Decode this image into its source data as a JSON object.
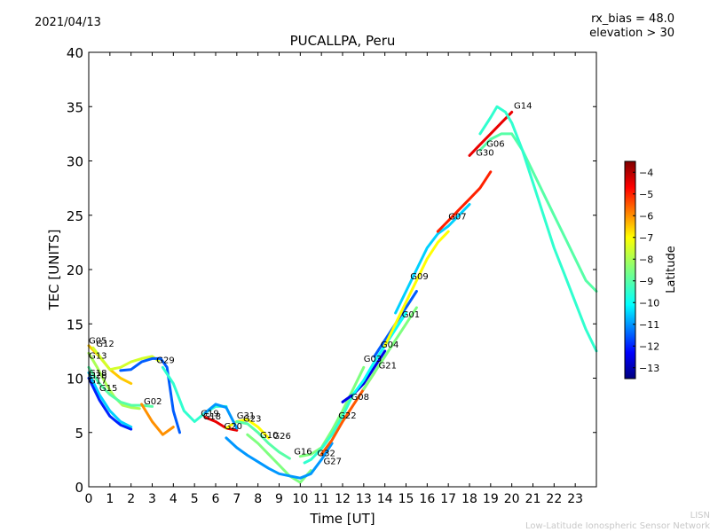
{
  "header": {
    "date": "2021/04/13",
    "rx_bias": "rx_bias = 48.0",
    "elevation": "elevation > 30"
  },
  "footer": {
    "credit_short": "LISN",
    "credit_long": "Low-Latitude Ionospheric Sensor Network"
  },
  "chart_data": {
    "type": "scatter",
    "title": "PUCALLPA, Peru",
    "xlabel": "Time [UT]",
    "ylabel": "TEC [UNITS]",
    "xlim": [
      0,
      24
    ],
    "ylim": [
      0,
      40
    ],
    "xticks": [
      0,
      1,
      2,
      3,
      4,
      5,
      6,
      7,
      8,
      9,
      10,
      11,
      12,
      13,
      14,
      15,
      16,
      17,
      18,
      19,
      20,
      21,
      22,
      23
    ],
    "yticks": [
      0,
      5,
      10,
      15,
      20,
      25,
      30,
      35,
      40
    ],
    "grid": false,
    "colorbar": {
      "label": "Latitude",
      "range": [
        -13.5,
        -3.5
      ],
      "ticks": [
        -4,
        -5,
        -6,
        -7,
        -8,
        -9,
        -10,
        -11,
        -12,
        -13
      ],
      "colormap": [
        "#00007f",
        "#0000ff",
        "#007fff",
        "#00ffff",
        "#7fff7f",
        "#ffff00",
        "#ff7f00",
        "#ff0000",
        "#7f0000"
      ]
    },
    "series": [
      {
        "name": "G05",
        "lat": -6.5,
        "x": [
          0.0,
          0.5,
          1.0,
          1.5,
          2.0
        ],
        "y": [
          13.0,
          12.0,
          10.8,
          10.0,
          9.5
        ]
      },
      {
        "name": "G12",
        "lat": -7.5,
        "x": [
          0.2,
          0.6,
          1.0,
          1.5,
          2.0,
          2.5,
          3.0,
          3.3
        ],
        "y": [
          12.8,
          11.8,
          10.8,
          11.0,
          11.5,
          11.8,
          12.0,
          11.6
        ]
      },
      {
        "name": "G13",
        "lat": -8.0,
        "x": [
          0.0,
          0.4,
          0.8,
          1.2,
          1.6,
          2.0,
          2.4
        ],
        "y": [
          12.3,
          11.0,
          9.5,
          8.3,
          7.5,
          7.3,
          7.2
        ]
      },
      {
        "name": "G15",
        "lat": -9.0,
        "x": [
          0.0,
          0.5,
          1.0,
          1.5,
          2.0,
          2.5,
          3.0
        ],
        "y": [
          11.0,
          9.5,
          8.5,
          7.8,
          7.5,
          7.5,
          7.4
        ]
      },
      {
        "name": "G18",
        "lat": -10.5,
        "x": [
          0.0,
          0.5,
          1.0,
          1.5,
          2.0
        ],
        "y": [
          10.5,
          8.5,
          7.0,
          6.0,
          5.5
        ]
      },
      {
        "name": "G28",
        "lat": -12.0,
        "x": [
          0.0,
          0.5,
          1.0,
          1.5,
          2.0
        ],
        "y": [
          10.0,
          8.0,
          6.5,
          5.7,
          5.3
        ]
      },
      {
        "name": "G29",
        "lat": -11.5,
        "x": [
          1.5,
          2.0,
          2.5,
          3.0,
          3.4,
          3.7,
          4.0,
          4.3
        ],
        "y": [
          10.7,
          10.8,
          11.5,
          11.8,
          11.8,
          11.0,
          7.0,
          5.0
        ]
      },
      {
        "name": "G02",
        "lat": -6.0,
        "x": [
          2.5,
          3.0,
          3.5,
          4.0
        ],
        "y": [
          7.6,
          6.0,
          4.8,
          5.5
        ]
      },
      {
        "name": "G26",
        "lat": -9.5,
        "x": [
          3.5,
          4.0,
          4.5,
          5.0,
          5.5,
          6.0,
          6.5
        ],
        "y": [
          11.0,
          9.5,
          7.0,
          6.0,
          6.8,
          7.4,
          7.4
        ]
      },
      {
        "name": "G19",
        "lat": -4.5,
        "x": [
          5.5,
          6.0,
          6.5,
          7.0
        ],
        "y": [
          6.4,
          6.0,
          5.4,
          5.2
        ]
      },
      {
        "name": "G20",
        "lat": -7.0,
        "x": [
          6.5,
          7.0,
          7.5,
          8.0,
          8.5
        ],
        "y": [
          5.4,
          6.0,
          6.2,
          5.5,
          4.5
        ]
      },
      {
        "name": "G31",
        "lat": -11.0,
        "x": [
          5.5,
          6.0,
          6.5,
          7.0
        ],
        "y": [
          6.8,
          7.6,
          7.3,
          5.4
        ]
      },
      {
        "name": "G23",
        "lat": -9.0,
        "x": [
          7.0,
          7.5,
          8.0,
          8.5,
          9.0,
          9.5
        ],
        "y": [
          6.0,
          5.8,
          5.0,
          4.0,
          3.2,
          2.6
        ]
      },
      {
        "name": "G10",
        "lat": -8.5,
        "x": [
          7.5,
          8.0,
          8.5,
          9.0,
          9.5,
          10.0,
          10.5
        ],
        "y": [
          4.8,
          4.0,
          3.0,
          2.0,
          1.0,
          0.4,
          1.5
        ]
      },
      {
        "name": "G16",
        "lat": -11.0,
        "x": [
          6.5,
          7.0,
          7.5,
          8.0,
          8.5,
          9.0,
          9.5,
          10.0,
          10.5,
          11.0,
          11.5
        ],
        "y": [
          4.5,
          3.6,
          2.9,
          2.3,
          1.7,
          1.2,
          1.0,
          0.8,
          1.2,
          2.5,
          4.0
        ]
      },
      {
        "name": "G32",
        "lat": -8.5,
        "x": [
          10.0,
          10.5,
          11.0,
          11.5,
          12.0,
          12.5,
          13.0
        ],
        "y": [
          2.8,
          3.0,
          3.6,
          5.2,
          7.0,
          9.0,
          11.0
        ]
      },
      {
        "name": "G27",
        "lat": -9.5,
        "x": [
          10.2,
          10.5,
          11.0,
          11.5,
          12.0,
          12.5
        ],
        "y": [
          2.2,
          2.5,
          3.5,
          4.8,
          6.5,
          8.5
        ]
      },
      {
        "name": "G22",
        "lat": -5.5,
        "x": [
          11.0,
          11.5,
          12.0,
          12.5,
          13.0,
          13.5
        ],
        "y": [
          3.0,
          4.3,
          6.0,
          7.5,
          9.0,
          10.5
        ]
      },
      {
        "name": "G08",
        "lat": -12.5,
        "x": [
          12.0,
          12.5,
          13.0,
          13.5,
          14.0
        ],
        "y": [
          7.8,
          8.5,
          9.5,
          11.0,
          12.5
        ]
      },
      {
        "name": "G03",
        "lat": -10.0,
        "x": [
          12.5,
          13.0,
          13.5,
          14.0,
          14.5,
          15.0
        ],
        "y": [
          8.5,
          9.8,
          11.5,
          13.0,
          14.5,
          16.0
        ]
      },
      {
        "name": "G21",
        "lat": -8.5,
        "x": [
          13.0,
          13.5,
          14.0,
          14.5,
          15.0,
          15.5
        ],
        "y": [
          9.0,
          10.5,
          12.0,
          13.5,
          15.0,
          16.5
        ]
      },
      {
        "name": "G04",
        "lat": -11.5,
        "x": [
          13.5,
          14.0,
          14.5,
          15.0,
          15.5
        ],
        "y": [
          12.0,
          13.5,
          15.0,
          16.5,
          18.0
        ]
      },
      {
        "name": "G01",
        "lat": -7.0,
        "x": [
          14.0,
          14.5,
          15.0,
          15.5,
          16.0,
          16.5,
          17.0
        ],
        "y": [
          13.0,
          15.0,
          17.0,
          19.0,
          21.0,
          22.5,
          23.5
        ]
      },
      {
        "name": "G09",
        "lat": -10.5,
        "x": [
          14.5,
          15.0,
          15.5,
          16.0,
          16.5,
          17.0,
          17.5,
          18.0
        ],
        "y": [
          16.0,
          18.0,
          20.0,
          22.0,
          23.3,
          24.0,
          25.0,
          26.0
        ]
      },
      {
        "name": "G07",
        "lat": -5.0,
        "x": [
          16.5,
          17.0,
          17.5,
          18.0,
          18.5,
          19.0
        ],
        "y": [
          23.5,
          24.5,
          25.5,
          26.5,
          27.5,
          29.0
        ]
      },
      {
        "name": "G30",
        "lat": -4.5,
        "x": [
          18.0,
          18.5,
          19.0,
          19.5,
          20.0
        ],
        "y": [
          30.5,
          31.5,
          32.5,
          33.5,
          34.5
        ]
      },
      {
        "name": "G06",
        "lat": -9.0,
        "x": [
          18.5,
          19.0,
          19.5,
          20.0,
          20.5,
          21.0,
          21.5,
          22.0,
          22.5,
          23.0,
          23.5,
          24.0
        ],
        "y": [
          31.0,
          32.0,
          32.5,
          32.5,
          31.0,
          29.0,
          27.0,
          25.0,
          23.0,
          21.0,
          19.0,
          18.0
        ]
      },
      {
        "name": "G14",
        "lat": -9.5,
        "x": [
          18.5,
          19.0,
          19.3,
          19.7,
          20.0,
          20.5,
          21.0,
          21.5,
          22.0,
          22.5,
          23.0,
          23.5,
          24.0
        ],
        "y": [
          32.5,
          34.0,
          35.0,
          34.5,
          33.5,
          31.0,
          28.0,
          25.0,
          22.0,
          19.5,
          17.0,
          14.5,
          12.5
        ]
      }
    ],
    "labels": [
      {
        "text": "G05",
        "x": 0.0,
        "y": 13.2
      },
      {
        "text": "G12",
        "x": 0.35,
        "y": 12.9
      },
      {
        "text": "G13",
        "x": 0.0,
        "y": 11.8
      },
      {
        "text": "G18",
        "x": 0.0,
        "y": 10.2
      },
      {
        "text": "G28",
        "x": 0.0,
        "y": 10.0
      },
      {
        "text": "G17",
        "x": 0.0,
        "y": 9.5
      },
      {
        "text": "G15",
        "x": 0.5,
        "y": 8.8
      },
      {
        "text": "G29",
        "x": 3.2,
        "y": 11.4
      },
      {
        "text": "G02",
        "x": 2.6,
        "y": 7.6
      },
      {
        "text": "G19",
        "x": 5.3,
        "y": 6.5
      },
      {
        "text": "G18",
        "x": 5.4,
        "y": 6.2
      },
      {
        "text": "G20",
        "x": 6.4,
        "y": 5.3
      },
      {
        "text": "G31",
        "x": 7.0,
        "y": 6.3
      },
      {
        "text": "G23",
        "x": 7.3,
        "y": 6.0
      },
      {
        "text": "G10",
        "x": 8.1,
        "y": 4.5
      },
      {
        "text": "G26",
        "x": 8.7,
        "y": 4.4
      },
      {
        "text": "G16",
        "x": 9.7,
        "y": 3.0
      },
      {
        "text": "G32",
        "x": 10.8,
        "y": 2.8
      },
      {
        "text": "G27",
        "x": 11.1,
        "y": 2.1
      },
      {
        "text": "G22",
        "x": 11.8,
        "y": 6.3
      },
      {
        "text": "G08",
        "x": 12.4,
        "y": 8.0
      },
      {
        "text": "G03",
        "x": 13.0,
        "y": 11.5
      },
      {
        "text": "G21",
        "x": 13.7,
        "y": 10.9
      },
      {
        "text": "G04",
        "x": 13.8,
        "y": 12.8
      },
      {
        "text": "G01",
        "x": 14.8,
        "y": 15.6
      },
      {
        "text": "G09",
        "x": 15.2,
        "y": 19.1
      },
      {
        "text": "G07",
        "x": 17.0,
        "y": 24.6
      },
      {
        "text": "G30",
        "x": 18.3,
        "y": 30.5
      },
      {
        "text": "G06",
        "x": 18.8,
        "y": 31.3
      },
      {
        "text": "G14",
        "x": 20.1,
        "y": 34.8
      }
    ]
  }
}
